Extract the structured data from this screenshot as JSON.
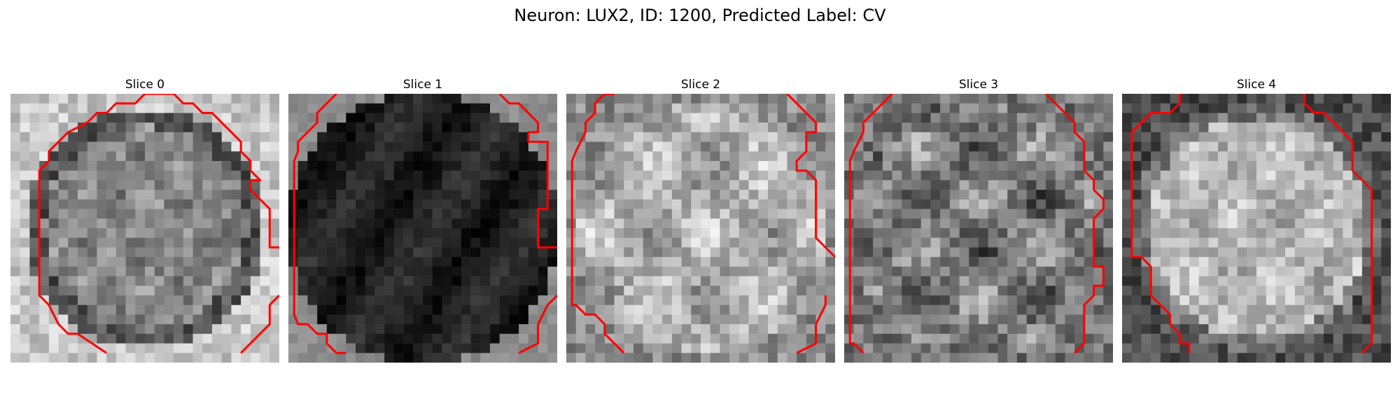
{
  "figure": {
    "suptitle": "Neuron: LUX2, ID: 1200, Predicted Label: CV"
  },
  "panels": [
    {
      "title": "Slice 0",
      "brightness": "medium-gray",
      "seed": 11
    },
    {
      "title": "Slice 1",
      "brightness": "dark",
      "seed": 23
    },
    {
      "title": "Slice 2",
      "brightness": "bright",
      "seed": 37
    },
    {
      "title": "Slice 3",
      "brightness": "medium",
      "seed": 51
    },
    {
      "title": "Slice 4",
      "brightness": "bright-with-dark-rim",
      "seed": 67
    }
  ],
  "colors": {
    "contour": "#ff0000",
    "background": "#ffffff"
  }
}
